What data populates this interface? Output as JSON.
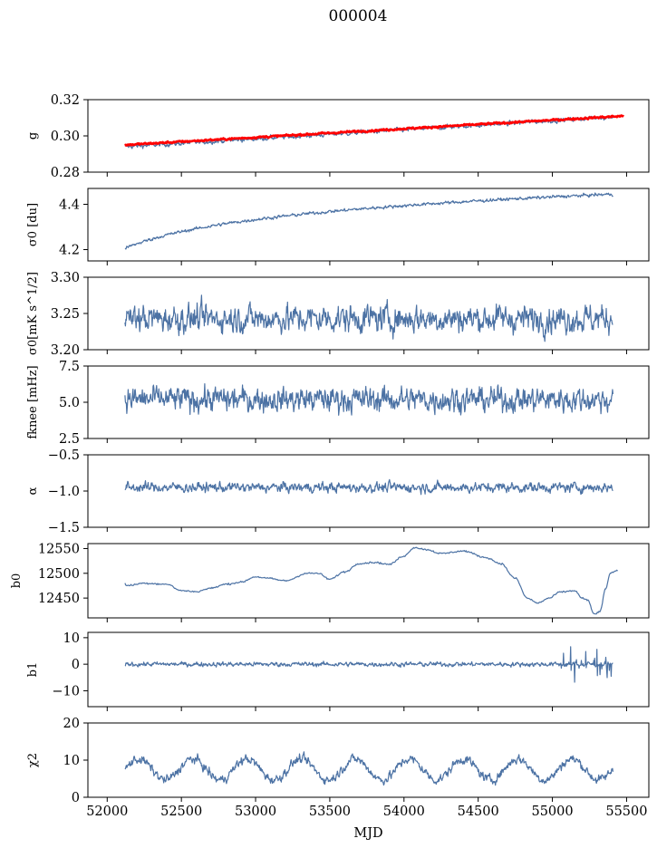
{
  "figure_title": "000004",
  "xlabel": "MJD",
  "x_ticks": [
    52000,
    52500,
    53000,
    53500,
    54000,
    54500,
    55000,
    55500
  ],
  "x_range": [
    51870,
    55650
  ],
  "data_x_range": [
    52120,
    55410
  ],
  "colors": {
    "series": "#4c72a4",
    "overlay": "#ff0000",
    "axes": "#000000"
  },
  "chart_data": [
    {
      "type": "line",
      "ylabel": "g",
      "ylim": [
        0.28,
        0.32
      ],
      "yticks": [
        "0.28",
        "0.30",
        "0.32"
      ],
      "ytick_values": [
        0.28,
        0.3,
        0.32
      ],
      "series": [
        {
          "style": "noisy-trend",
          "x_start": 52120,
          "x_end": 55410,
          "start": 0.294,
          "end": 0.3105,
          "noise": 0.0012,
          "color": "#4c72a4"
        },
        {
          "style": "smooth-trend",
          "x_start": 52120,
          "x_end": 55480,
          "start": 0.295,
          "end": 0.311,
          "noise": 0.0005,
          "color": "#ff0000"
        }
      ]
    },
    {
      "type": "line",
      "ylabel": "σ0 [du]",
      "ylim": [
        4.15,
        4.47
      ],
      "yticks": [
        "4.2",
        "4.4"
      ],
      "ytick_values": [
        4.2,
        4.4
      ],
      "series": [
        {
          "style": "log-trend",
          "x_start": 52120,
          "x_end": 55410,
          "start": 4.205,
          "end": 4.445,
          "noise": 0.004,
          "color": "#4c72a4"
        }
      ]
    },
    {
      "type": "line",
      "ylabel": "σ0[mK s^1/2]",
      "ylim": [
        3.2,
        3.3
      ],
      "yticks": [
        "3.20",
        "3.25",
        "3.30"
      ],
      "ytick_values": [
        3.2,
        3.25,
        3.3
      ],
      "series": [
        {
          "style": "noise",
          "x_start": 52120,
          "x_end": 55410,
          "mean": 3.243,
          "noise": 0.011,
          "color": "#4c72a4"
        }
      ]
    },
    {
      "type": "line",
      "ylabel": "fknee [mHz]",
      "ylim": [
        2.5,
        7.5
      ],
      "yticks": [
        "2.5",
        "5.0",
        "7.5"
      ],
      "ytick_values": [
        2.5,
        5.0,
        7.5
      ],
      "series": [
        {
          "style": "noise",
          "x_start": 52120,
          "x_end": 55410,
          "mean": 5.2,
          "noise": 0.5,
          "color": "#4c72a4"
        }
      ]
    },
    {
      "type": "line",
      "ylabel": "α",
      "ylim": [
        -1.5,
        -0.5
      ],
      "yticks": [
        "−1.5",
        "−1.0",
        "−0.5"
      ],
      "ytick_values": [
        -1.5,
        -1.0,
        -0.5
      ],
      "series": [
        {
          "style": "noise",
          "x_start": 52120,
          "x_end": 55410,
          "mean": -0.95,
          "noise": 0.04,
          "color": "#4c72a4"
        }
      ]
    },
    {
      "type": "line",
      "ylabel": "b0",
      "ylim": [
        12410,
        12560
      ],
      "yticks": [
        "12450",
        "12500",
        "12550"
      ],
      "ytick_values": [
        12450,
        12500,
        12550
      ],
      "series": [
        {
          "style": "keypoints",
          "color": "#4c72a4",
          "noise": 1.2,
          "points": [
            [
              52120,
              12480
            ],
            [
              52130,
              12475
            ],
            [
              52250,
              12480
            ],
            [
              52400,
              12478
            ],
            [
              52500,
              12465
            ],
            [
              52600,
              12463
            ],
            [
              52700,
              12470
            ],
            [
              52800,
              12478
            ],
            [
              52900,
              12482
            ],
            [
              53000,
              12493
            ],
            [
              53080,
              12490
            ],
            [
              53200,
              12485
            ],
            [
              53350,
              12500
            ],
            [
              53420,
              12500
            ],
            [
              53500,
              12488
            ],
            [
              53600,
              12503
            ],
            [
              53700,
              12520
            ],
            [
              53800,
              12522
            ],
            [
              53900,
              12518
            ],
            [
              54000,
              12535
            ],
            [
              54070,
              12552
            ],
            [
              54150,
              12548
            ],
            [
              54250,
              12540
            ],
            [
              54400,
              12545
            ],
            [
              54550,
              12532
            ],
            [
              54650,
              12520
            ],
            [
              54750,
              12490
            ],
            [
              54830,
              12450
            ],
            [
              54900,
              12440
            ],
            [
              54980,
              12450
            ],
            [
              55050,
              12462
            ],
            [
              55150,
              12465
            ],
            [
              55200,
              12450
            ],
            [
              55240,
              12445
            ],
            [
              55280,
              12418
            ],
            [
              55320,
              12422
            ],
            [
              55360,
              12470
            ],
            [
              55390,
              12500
            ],
            [
              55440,
              12505
            ]
          ]
        }
      ]
    },
    {
      "type": "line",
      "ylabel": "b1",
      "ylim": [
        -16,
        12
      ],
      "yticks": [
        "−10",
        "0",
        "10"
      ],
      "ytick_values": [
        -10,
        0,
        10
      ],
      "series": [
        {
          "style": "noise-spikes",
          "x_start": 52120,
          "x_end": 55410,
          "mean": 0.0,
          "noise": 0.5,
          "spike_from": 55050,
          "color": "#4c72a4"
        }
      ]
    },
    {
      "type": "line",
      "ylabel": "χ2",
      "ylim": [
        0,
        20
      ],
      "yticks": [
        "0",
        "10",
        "20"
      ],
      "ytick_values": [
        0,
        10,
        20
      ],
      "series": [
        {
          "style": "periodic",
          "x_start": 52120,
          "x_end": 55410,
          "mean": 7.5,
          "amplitude": 2.8,
          "period": 365,
          "noise": 1.2,
          "color": "#4c72a4"
        }
      ]
    }
  ]
}
